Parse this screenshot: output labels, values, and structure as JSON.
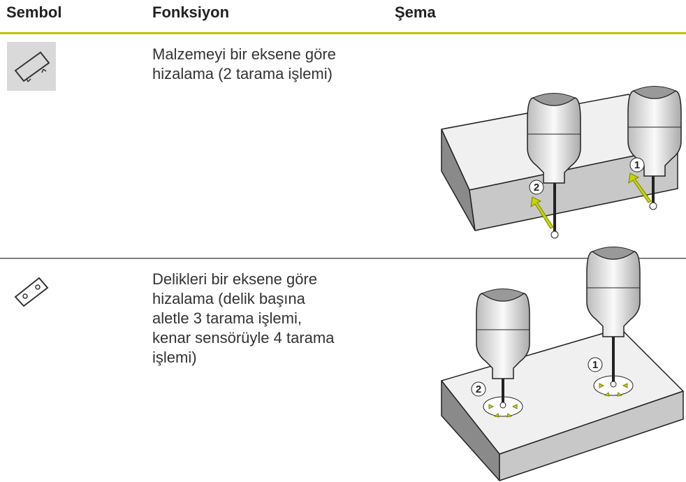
{
  "header": {
    "columns": [
      "Sembol",
      "Fonksiyon",
      "Şema"
    ]
  },
  "rows": [
    {
      "function_lines": [
        "Malzemeyi bir eksene göre",
        "hizalama (2 tarama işlemi)"
      ],
      "diagram_labels": [
        "1",
        "2"
      ]
    },
    {
      "function_lines": [
        "Delikleri bir eksene göre",
        "hizalama (delik başına",
        "aletle 3 tarama işlemi,",
        "kenar sensörüyle 4 tarama",
        "işlemi)"
      ],
      "diagram_labels": [
        "1",
        "2"
      ]
    }
  ]
}
